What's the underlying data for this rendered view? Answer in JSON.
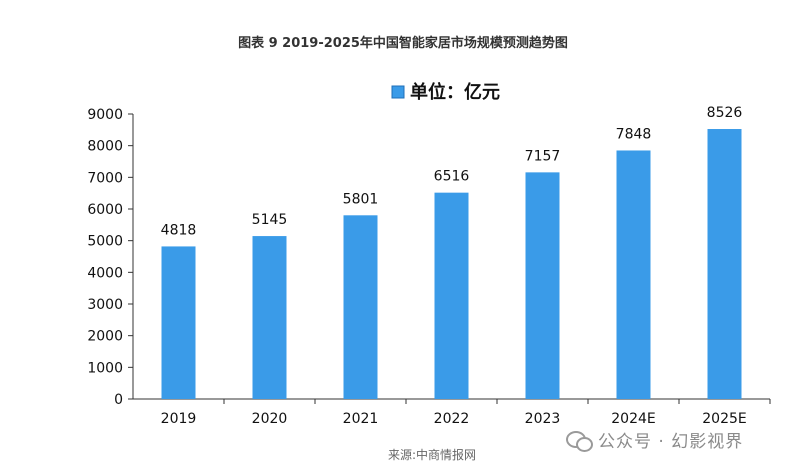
{
  "title": "图表 9 2019-2025年中国智能家居市场规模预测趋势图",
  "source": "来源:中商情报网",
  "watermark": "公众号 · 幻影视界",
  "watermark_icon": "wechat-icon",
  "chart_data": {
    "type": "bar",
    "categories": [
      "2019",
      "2020",
      "2021",
      "2022",
      "2023",
      "2024E",
      "2025E"
    ],
    "series": [
      {
        "name": "单位：亿元",
        "values": [
          4818,
          5145,
          5801,
          6516,
          7157,
          7848,
          8526
        ]
      }
    ],
    "ylim": [
      0,
      9000
    ],
    "yticks": [
      0,
      1000,
      2000,
      3000,
      4000,
      5000,
      6000,
      7000,
      8000,
      9000
    ],
    "grid": false,
    "legend_position": "top-center",
    "data_labels": true,
    "bar_color": "#3a9be8"
  }
}
